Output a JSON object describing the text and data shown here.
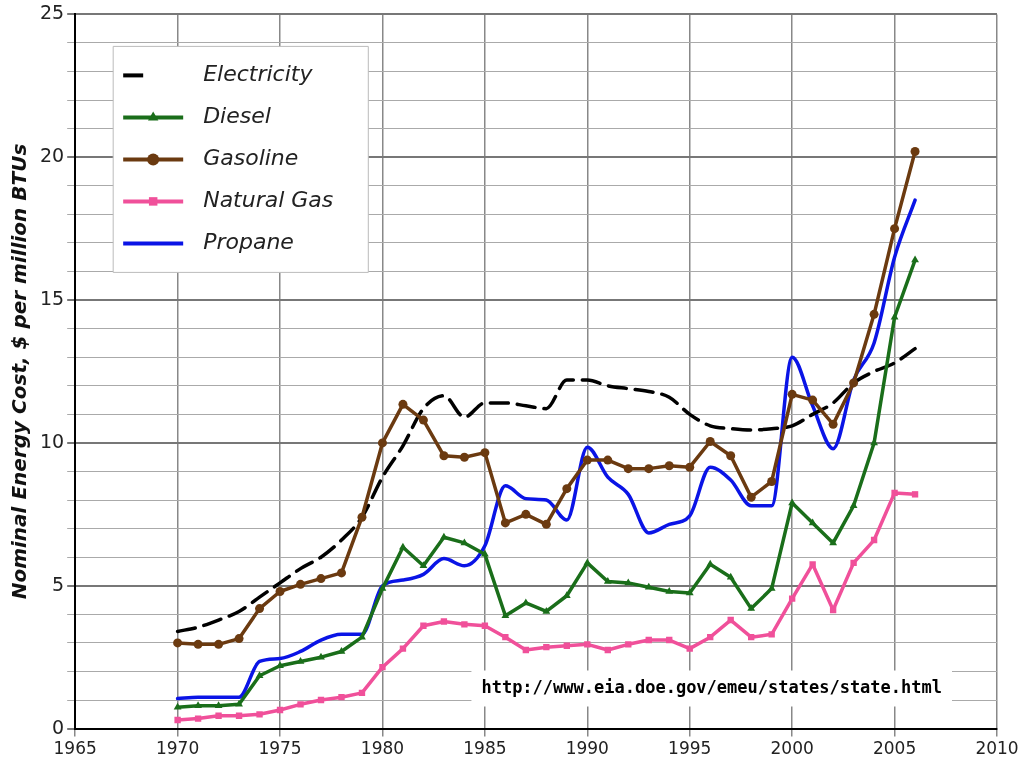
{
  "chart_data": {
    "type": "line",
    "ylabel": "Nominal Energy Cost, $ per million BTUs",
    "x": [
      1970,
      1971,
      1972,
      1973,
      1974,
      1975,
      1976,
      1977,
      1978,
      1979,
      1980,
      1981,
      1982,
      1983,
      1984,
      1985,
      1986,
      1987,
      1988,
      1989,
      1990,
      1991,
      1992,
      1993,
      1994,
      1995,
      1996,
      1997,
      1998,
      1999,
      2000,
      2001,
      2002,
      2003,
      2004,
      2005,
      2006
    ],
    "series": [
      {
        "name": "Electricity",
        "color": "#000000",
        "marker": "none",
        "line_style": "dashed",
        "values": [
          3.4,
          3.55,
          3.8,
          4.1,
          4.6,
          5.1,
          5.6,
          6.0,
          6.6,
          7.4,
          8.8,
          9.9,
          11.2,
          11.65,
          10.9,
          11.4,
          11.4,
          11.3,
          11.2,
          12.2,
          12.2,
          12.0,
          11.9,
          11.8,
          11.6,
          11.0,
          10.6,
          10.5,
          10.45,
          10.5,
          10.6,
          11.0,
          11.4,
          12.1,
          12.5,
          12.8,
          13.3
        ]
      },
      {
        "name": "Diesel",
        "color": "#1a6e1a",
        "marker": "triangle",
        "line_style": "solid",
        "values": [
          0.75,
          0.8,
          0.8,
          0.85,
          1.85,
          2.2,
          2.35,
          2.5,
          2.7,
          3.2,
          4.9,
          6.35,
          5.7,
          6.7,
          6.5,
          6.1,
          3.95,
          4.4,
          4.1,
          4.65,
          5.8,
          5.15,
          5.1,
          4.95,
          4.8,
          4.75,
          5.75,
          5.3,
          4.2,
          4.9,
          7.9,
          7.2,
          6.5,
          7.8,
          10.0,
          14.4,
          16.4
        ]
      },
      {
        "name": "Gasoline",
        "color": "#6b3a10",
        "marker": "circle",
        "line_style": "solid",
        "values": [
          3.0,
          2.95,
          2.95,
          3.15,
          4.2,
          4.8,
          5.05,
          5.25,
          5.45,
          7.4,
          10.0,
          11.35,
          10.8,
          9.55,
          9.5,
          9.66,
          7.2,
          7.5,
          7.15,
          8.4,
          9.4,
          9.4,
          9.1,
          9.1,
          9.2,
          9.15,
          10.05,
          9.55,
          8.1,
          8.65,
          11.7,
          11.5,
          10.65,
          12.1,
          14.5,
          17.5,
          20.2
        ]
      },
      {
        "name": "Natural Gas",
        "color": "#f0509a",
        "marker": "square",
        "line_style": "solid",
        "values": [
          0.3,
          0.35,
          0.45,
          0.45,
          0.5,
          0.65,
          0.85,
          1.0,
          1.1,
          1.25,
          2.15,
          2.8,
          3.6,
          3.75,
          3.65,
          3.6,
          3.2,
          2.75,
          2.85,
          2.9,
          2.95,
          2.75,
          2.95,
          3.1,
          3.1,
          2.8,
          3.2,
          3.8,
          3.2,
          3.3,
          4.55,
          5.75,
          4.15,
          5.8,
          6.6,
          8.25,
          8.2
        ]
      },
      {
        "name": "Propane",
        "color": "#0a14e6",
        "marker": "none",
        "line_style": "solid",
        "values": [
          1.05,
          1.1,
          1.1,
          1.1,
          2.35,
          2.45,
          2.7,
          3.1,
          3.3,
          3.3,
          5.0,
          5.2,
          5.4,
          5.95,
          5.7,
          6.4,
          8.5,
          8.05,
          8.0,
          7.3,
          9.85,
          8.8,
          8.2,
          6.85,
          7.15,
          7.45,
          9.15,
          8.7,
          7.8,
          7.8,
          13.0,
          11.3,
          9.8,
          12.2,
          13.5,
          16.5,
          18.5
        ]
      }
    ],
    "xlim": [
      1965,
      2010
    ],
    "xticks": [
      1965,
      1970,
      1975,
      1980,
      1985,
      1990,
      1995,
      2000,
      2005,
      2010
    ],
    "ylim": [
      0,
      25
    ],
    "yticks": [
      0,
      {
        "value": 1,
        "label": null
      },
      {
        "value": 2,
        "label": null
      },
      {
        "value": 3,
        "label": null
      },
      {
        "value": 4,
        "label": null
      },
      5,
      {
        "value": 6,
        "label": null
      },
      {
        "value": 7,
        "label": null
      },
      {
        "value": 8,
        "label": null
      },
      {
        "value": 9,
        "label": null
      },
      10,
      {
        "value": 11,
        "label": null
      },
      {
        "value": 12,
        "label": null
      },
      {
        "value": 13,
        "label": null
      },
      {
        "value": 14,
        "label": null
      },
      15,
      {
        "value": 16,
        "label": null
      },
      {
        "value": 17,
        "label": null
      },
      {
        "value": 18,
        "label": null
      },
      {
        "value": 19,
        "label": null
      },
      20,
      {
        "value": 21,
        "label": null
      },
      {
        "value": 22,
        "label": null
      },
      {
        "value": 23,
        "label": null
      },
      {
        "value": 24,
        "label": null
      },
      25
    ],
    "grid": true,
    "legend": "top left",
    "annotations": [
      "http://www.eia.doe.gov/emeu/states/state.html"
    ]
  }
}
